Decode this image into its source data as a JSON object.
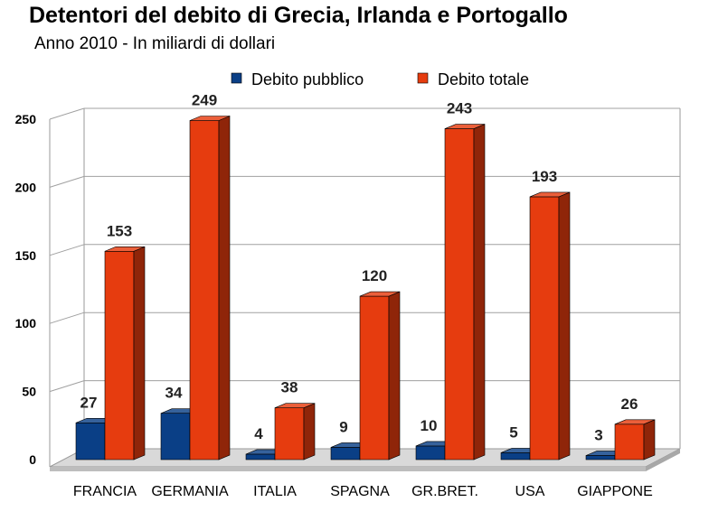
{
  "chart_data": {
    "type": "bar",
    "title": "Detentori del debito di Grecia, Irlanda e Portogallo",
    "subtitle": "Anno 2010 - In miliardi di dollari",
    "xlabel": "",
    "ylabel": "",
    "categories": [
      "FRANCIA",
      "GERMANIA",
      "ITALIA",
      "SPAGNA",
      "GR.BRET.",
      "USA",
      "GIAPPONE"
    ],
    "series": [
      {
        "name": "Debito pubblico",
        "values": [
          27,
          34,
          4,
          9,
          10,
          5,
          3
        ],
        "color": "#0a3f86"
      },
      {
        "name": "Debito totale",
        "values": [
          153,
          249,
          38,
          120,
          243,
          193,
          26
        ],
        "color": "#e63c0f"
      }
    ],
    "ylim": [
      0,
      250
    ],
    "yticks": [
      0,
      50,
      100,
      150,
      200,
      250
    ],
    "grid": true,
    "legend": "top",
    "style": "3d"
  }
}
